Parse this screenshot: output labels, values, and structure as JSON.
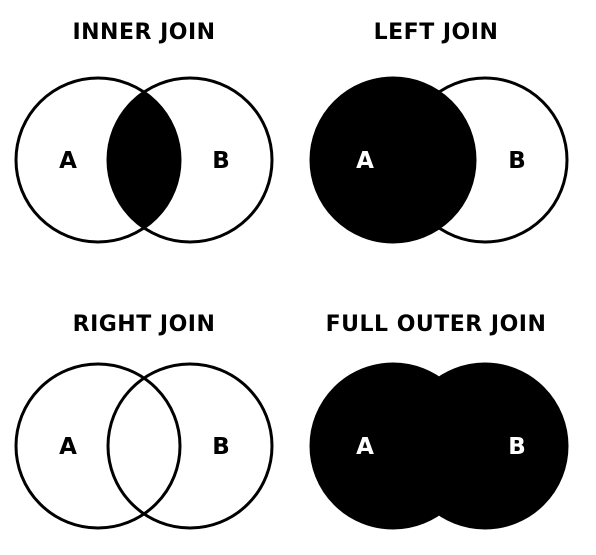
{
  "diagram": {
    "panels": [
      {
        "title": "INNER JOIN",
        "set_a": "A",
        "set_b": "B",
        "fill_left": false,
        "fill_intersection": true,
        "fill_right": false
      },
      {
        "title": "LEFT JOIN",
        "set_a": "A",
        "set_b": "B",
        "fill_left": true,
        "fill_intersection": true,
        "fill_right": false
      },
      {
        "title": "RIGHT JOIN",
        "set_a": "A",
        "set_b": "B",
        "fill_left": false,
        "fill_intersection": false,
        "fill_right": false
      },
      {
        "title": "FULL OUTER JOIN",
        "set_a": "A",
        "set_b": "B",
        "fill_left": true,
        "fill_intersection": true,
        "fill_right": true
      }
    ]
  },
  "colors": {
    "fill": "#000000",
    "stroke": "#000000",
    "background": "#ffffff",
    "text_on_white": "#000000",
    "text_on_fill": "#ffffff"
  }
}
